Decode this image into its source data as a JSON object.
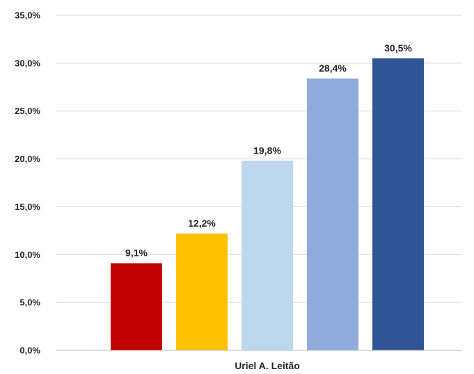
{
  "chart_data": {
    "type": "bar",
    "categories": [
      "Uriel A. Leitão"
    ],
    "series": [
      {
        "values": [
          9.1
        ],
        "color": "#c00000",
        "label": "9,1%"
      },
      {
        "values": [
          12.2
        ],
        "color": "#ffc000",
        "label": "12,2%"
      },
      {
        "values": [
          19.8
        ],
        "color": "#bdd7ee",
        "label": "19,8%"
      },
      {
        "values": [
          28.4
        ],
        "color": "#8faadc",
        "label": "28,4%"
      },
      {
        "values": [
          30.5
        ],
        "color": "#2f5597",
        "label": "30,5%"
      }
    ],
    "ylim": [
      0,
      35
    ],
    "yticks": [
      0,
      5,
      10,
      15,
      20,
      25,
      30,
      35
    ],
    "ytick_labels": [
      "0,0%",
      "5,0%",
      "10,0%",
      "15,0%",
      "20,0%",
      "25,0%",
      "30,0%",
      "35,0%"
    ],
    "grid": true,
    "legend": "none"
  }
}
